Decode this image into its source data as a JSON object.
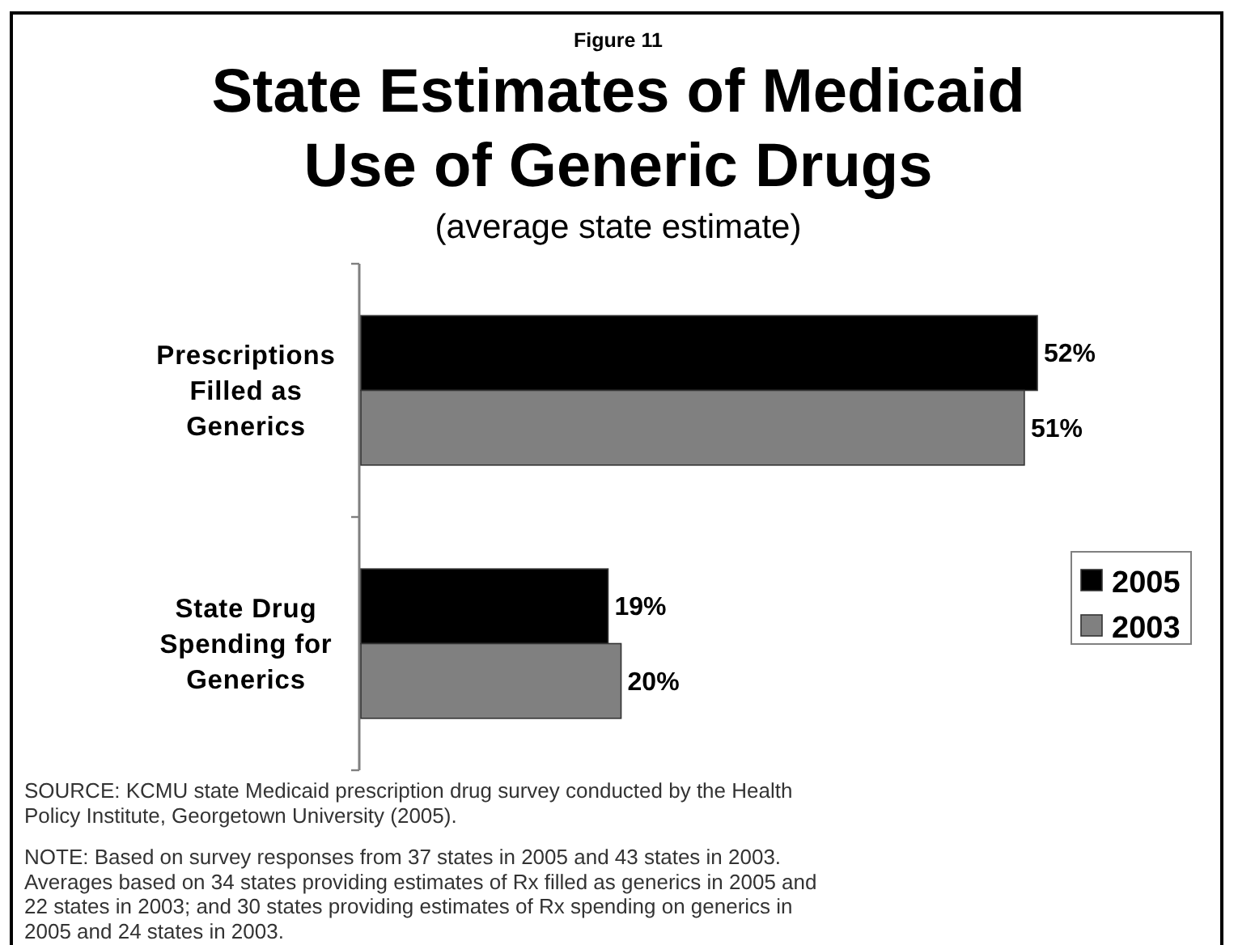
{
  "chart_data": {
    "type": "bar",
    "orientation": "horizontal",
    "title": "State Estimates of Medicaid Use of Generic Drugs",
    "subtitle": "(average state estimate)",
    "categories": [
      "Prescriptions Filled as Generics",
      "State Drug Spending for Generics"
    ],
    "series": [
      {
        "name": "2005",
        "color": "#000000",
        "values": [
          52,
          19
        ],
        "value_labels": [
          "52%",
          "19%"
        ]
      },
      {
        "name": "2003",
        "color": "#808080",
        "values": [
          51,
          20
        ],
        "value_labels": [
          "51%",
          "20%"
        ]
      }
    ],
    "legend": "right",
    "tick_labels": "y",
    "annotations": [
      "Figure 11",
      "SOURCE: KCMU state Medicaid prescription drug survey conducted by the Health Policy Institute, Georgetown University (2005).",
      "NOTE: Based on survey responses from 37 states in 2005 and 43 states in 2003. Averages based on 34 states providing estimates of Rx filled as generics in 2005 and 22 states in 2003; and 30 states providing estimates of Rx spending on generics in 2005 and 24 states in 2003."
    ]
  }
}
